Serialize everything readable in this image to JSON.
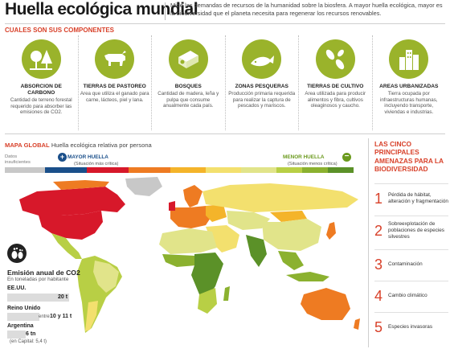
{
  "header": {
    "title": "Huella ecológica mundial",
    "intro": "Mide las demandas de recursos de la humanidad sobre la biosfera. A mayor huella ecológica, mayor es la biodiversidad que el planeta necesita para regenerar los recursos renovables."
  },
  "components": {
    "heading": "CUALES SON SUS COMPONENTES",
    "items": [
      {
        "title": "ABSORCION DE CARBONO",
        "desc": "Cantidad de terreno forestal requerido para absorber las emisiones de CO2.",
        "icon": "forest-icon"
      },
      {
        "title": "TIERRAS DE PASTOREO",
        "desc": "Area que utiliza el ganado para carne, lácteos, piel y lana.",
        "icon": "cow-icon"
      },
      {
        "title": "BOSQUES",
        "desc": "Cantidad de madera, leña y pulpa que consume anualmente cada país.",
        "icon": "wood-logs-icon"
      },
      {
        "title": "ZONAS PESQUERAS",
        "desc": "Producción primaria requerida para realizar la captura de pescados y mariscos.",
        "icon": "fish-icon"
      },
      {
        "title": "TIERRAS DE CULTIVO",
        "desc": "Area utilizada para producir alimentos y fibra, cultivos oleaginosos y caucho.",
        "icon": "crops-icon"
      },
      {
        "title": "AREAS URBANIZADAS",
        "desc": "Tierra ocupada por infraestructuras humanas, incluyendo transporte, viviendas e industrias.",
        "icon": "buildings-icon"
      }
    ],
    "accent_color": "#9ab32b"
  },
  "map": {
    "heading": "MAPA GLOBAL",
    "subheading": "Huella ecológica relativa por persona",
    "legend": {
      "insufficient": "Datos insuficientes",
      "more": "MAYOR HUELLA",
      "more_sub": "(Situación más crítica)",
      "less": "MENOR HUELLA",
      "less_sub": "(Situación menos crítica)",
      "colors": [
        "#c8c8c8",
        "#1a4f8a",
        "#d7182a",
        "#ee7b22",
        "#f4b42a",
        "#f3e06e",
        "#e1e48a",
        "#b8cf45",
        "#8bb12f",
        "#5b9128"
      ]
    }
  },
  "co2": {
    "title": "Emisión anual de CO2",
    "subtitle": "En toneladas por habitante",
    "rows": [
      {
        "country": "EE.UU.",
        "value": "20 t",
        "tonnes": 20
      },
      {
        "country": "Reino Unido",
        "value": "10 y 11 t",
        "note": "entre",
        "tonnes": 10.5
      },
      {
        "country": "Argentina",
        "value": "6 tn",
        "note": "(en Capital: 5,4 t)",
        "tonnes": 6
      }
    ]
  },
  "threats": {
    "title": "LAS CINCO PRINCIPALES AMENAZAS PARA LA BIODIVERSIDAD",
    "items": [
      {
        "num": "1",
        "text": "Pérdida de hábitat, alteración y fragmentación"
      },
      {
        "num": "2",
        "text": "Sobreexplotación de poblaciones de especies silvestres"
      },
      {
        "num": "3",
        "text": "Contaminación"
      },
      {
        "num": "4",
        "text": "Cambio climático"
      },
      {
        "num": "5",
        "text": "Especies invasoras"
      }
    ]
  }
}
